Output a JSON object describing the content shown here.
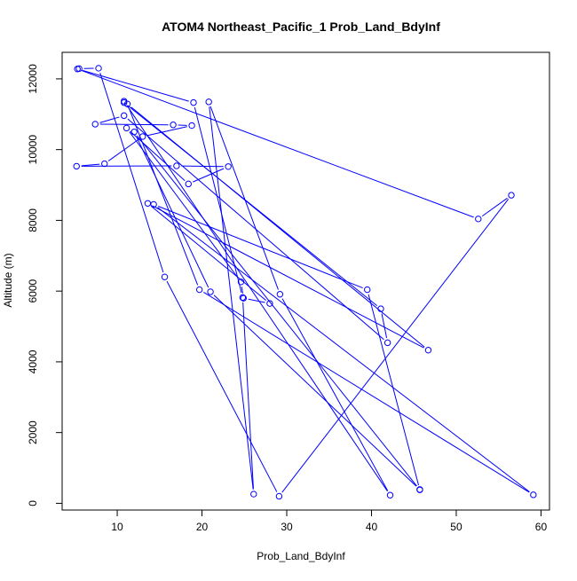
{
  "chart_data": {
    "type": "scatter",
    "title": "ATOM4 Northeast_Pacific_1 Prob_Land_BdyInf",
    "xlabel": "Prob_Land_BdyInf",
    "ylabel": "Altitude (m)",
    "xlim": [
      3.5,
      61.0
    ],
    "ylim": [
      -190,
      12750
    ],
    "xticks": [
      10,
      20,
      30,
      40,
      50,
      60
    ],
    "yticks": [
      0,
      2000,
      4000,
      6000,
      8000,
      10000,
      12000
    ],
    "grid": false,
    "legend": "none",
    "series_color": "#0000ff",
    "points": [
      [
        5.5,
        12290
      ],
      [
        7.8,
        12300
      ],
      [
        15.6,
        6400
      ],
      [
        29.1,
        200
      ],
      [
        56.5,
        8710
      ],
      [
        52.6,
        8040
      ],
      [
        5.3,
        12280
      ],
      [
        19.0,
        11330
      ],
      [
        24.8,
        5820
      ],
      [
        26.1,
        260
      ],
      [
        20.8,
        11350
      ],
      [
        29.2,
        5910
      ],
      [
        42.2,
        230
      ],
      [
        10.8,
        11370
      ],
      [
        10.8,
        11330
      ],
      [
        41.1,
        5500
      ],
      [
        41.9,
        4540
      ],
      [
        10.8,
        10960
      ],
      [
        7.4,
        10720
      ],
      [
        16.6,
        10700
      ],
      [
        18.8,
        10680
      ],
      [
        13.0,
        10370
      ],
      [
        8.5,
        9600
      ],
      [
        5.2,
        9530
      ],
      [
        17.0,
        9540
      ],
      [
        23.1,
        9520
      ],
      [
        18.4,
        9030
      ],
      [
        11.1,
        10610
      ],
      [
        24.6,
        6260
      ],
      [
        24.9,
        5800
      ],
      [
        28.0,
        5650
      ],
      [
        13.6,
        8480
      ],
      [
        46.7,
        4330
      ],
      [
        11.2,
        11290
      ],
      [
        19.7,
        6040
      ],
      [
        59.1,
        240
      ],
      [
        14.3,
        8450
      ],
      [
        39.5,
        6040
      ],
      [
        45.7,
        380
      ],
      [
        12.0,
        10500
      ],
      [
        21.0,
        5980
      ],
      [
        45.7,
        390
      ]
    ]
  }
}
